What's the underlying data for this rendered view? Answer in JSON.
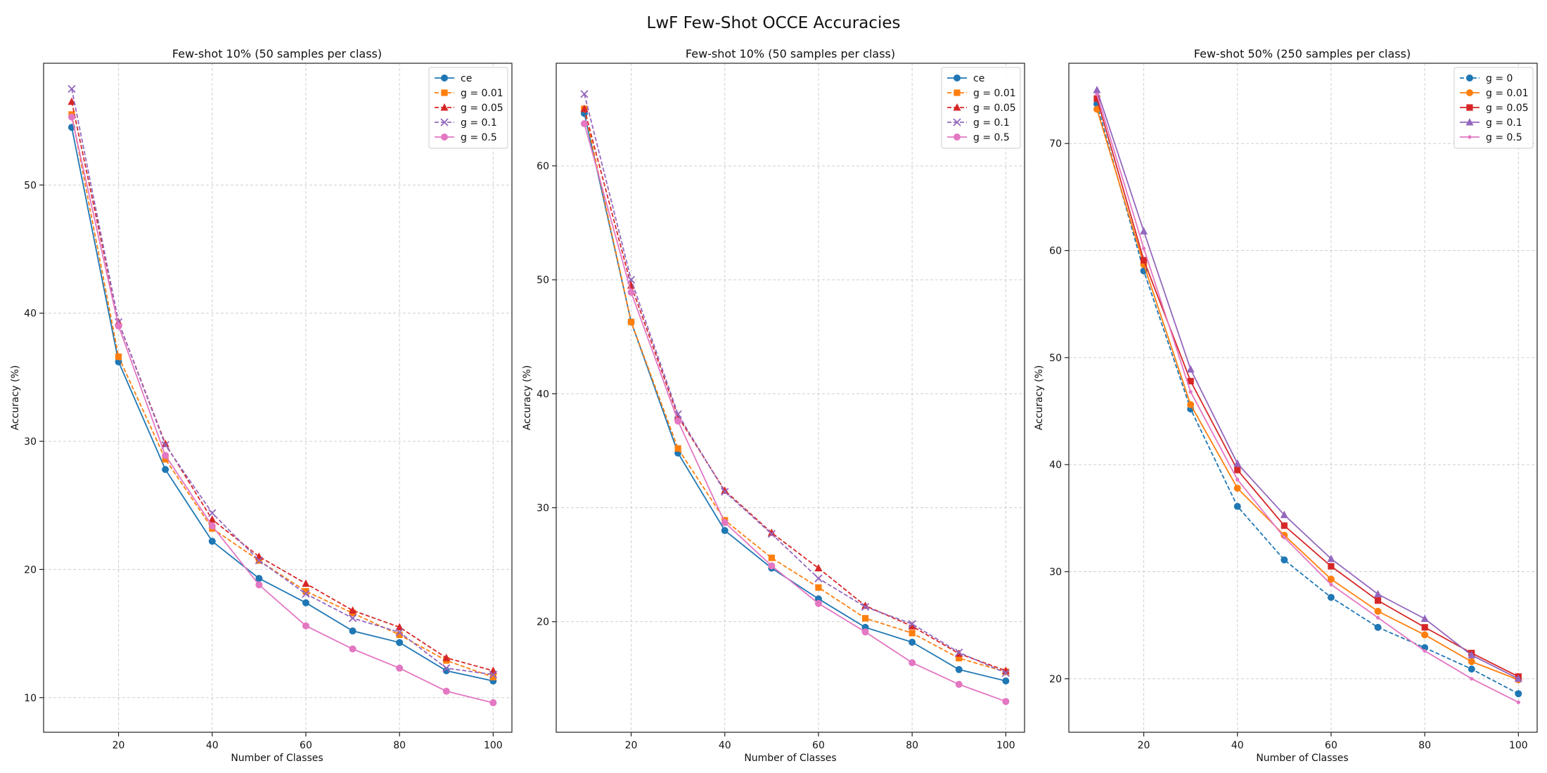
{
  "figure": {
    "title": "LwF Few-Shot OCCE Accuracies"
  },
  "chart_data": [
    {
      "type": "line",
      "title": "Few-shot 10% (50 samples per class)",
      "xlabel": "Number of Classes",
      "ylabel": "Accuracy (%)",
      "x": [
        10,
        20,
        30,
        40,
        50,
        60,
        70,
        80,
        90,
        100
      ],
      "xlim": [
        4,
        104
      ],
      "ylim": [
        7.3,
        59.5
      ],
      "xticks": [
        20,
        40,
        60,
        80,
        100
      ],
      "yticks": [
        10,
        20,
        30,
        40,
        50
      ],
      "legend_position": "top-right",
      "grid": true,
      "series": [
        {
          "name": "ce",
          "color": "#1f77b4",
          "dash": "solid",
          "marker": "circle",
          "values": [
            54.5,
            36.2,
            27.8,
            22.2,
            19.3,
            17.4,
            15.2,
            14.3,
            12.1,
            11.3
          ]
        },
        {
          "name": "g = 0.01",
          "color": "#ff7f0e",
          "dash": "dashed",
          "marker": "square",
          "values": [
            55.5,
            36.6,
            28.6,
            23.2,
            20.7,
            18.3,
            16.6,
            14.9,
            12.9,
            11.6
          ]
        },
        {
          "name": "g = 0.05",
          "color": "#d62728",
          "dash": "dashed",
          "marker": "triangle",
          "values": [
            56.5,
            39.3,
            29.8,
            23.9,
            21.0,
            18.9,
            16.8,
            15.5,
            13.1,
            12.1
          ]
        },
        {
          "name": "g = 0.1",
          "color": "#9467bd",
          "dash": "dashed",
          "marker": "x",
          "values": [
            57.5,
            39.3,
            29.7,
            24.4,
            20.7,
            18.1,
            16.2,
            15.1,
            12.3,
            11.8
          ]
        },
        {
          "name": "g = 0.5",
          "color": "#e377c2",
          "dash": "solid",
          "marker": "circle",
          "values": [
            55.3,
            39.0,
            28.9,
            23.4,
            18.8,
            15.6,
            13.8,
            12.3,
            10.5,
            9.6
          ]
        }
      ]
    },
    {
      "type": "line",
      "title": "Few-shot 10% (50 samples per class)",
      "xlabel": "Number of Classes",
      "ylabel": "Accuracy (%)",
      "x": [
        10,
        20,
        30,
        40,
        50,
        60,
        70,
        80,
        90,
        100
      ],
      "xlim": [
        4,
        104
      ],
      "ylim": [
        10.3,
        69.0
      ],
      "xticks": [
        20,
        40,
        60,
        80,
        100
      ],
      "yticks": [
        20,
        30,
        40,
        50,
        60
      ],
      "legend_position": "top-right",
      "grid": true,
      "series": [
        {
          "name": "ce",
          "color": "#1f77b4",
          "dash": "solid",
          "marker": "circle",
          "values": [
            64.6,
            46.3,
            34.8,
            28.0,
            24.7,
            22.0,
            19.5,
            18.2,
            15.8,
            14.8
          ]
        },
        {
          "name": "g = 0.01",
          "color": "#ff7f0e",
          "dash": "dashed",
          "marker": "square",
          "values": [
            65.0,
            46.3,
            35.2,
            28.9,
            25.6,
            23.0,
            20.3,
            19.0,
            16.8,
            15.6
          ]
        },
        {
          "name": "g = 0.05",
          "color": "#d62728",
          "dash": "dashed",
          "marker": "triangle",
          "values": [
            65.0,
            49.5,
            38.0,
            31.5,
            27.8,
            24.7,
            21.4,
            19.6,
            17.2,
            15.7
          ]
        },
        {
          "name": "g = 0.1",
          "color": "#9467bd",
          "dash": "dashed",
          "marker": "x",
          "values": [
            66.3,
            50.0,
            38.2,
            31.4,
            27.7,
            23.8,
            21.3,
            19.8,
            17.3,
            15.5
          ]
        },
        {
          "name": "g = 0.5",
          "color": "#e377c2",
          "dash": "solid",
          "marker": "circle",
          "values": [
            63.7,
            48.9,
            37.6,
            28.7,
            24.9,
            21.6,
            19.1,
            16.4,
            14.5,
            13.0
          ]
        }
      ]
    },
    {
      "type": "line",
      "title": "Few-shot 50% (250 samples per class)",
      "xlabel": "Number of Classes",
      "ylabel": "Accuracy (%)",
      "x": [
        10,
        20,
        30,
        40,
        50,
        60,
        70,
        80,
        90,
        100
      ],
      "xlim": [
        4,
        104
      ],
      "ylim": [
        15.0,
        77.5
      ],
      "xticks": [
        20,
        40,
        60,
        80,
        100
      ],
      "yticks": [
        20,
        30,
        40,
        50,
        60,
        70
      ],
      "legend_position": "top-right",
      "grid": true,
      "series": [
        {
          "name": "g = 0",
          "color": "#1f77b4",
          "dash": "dashed",
          "marker": "circle",
          "values": [
            73.7,
            58.1,
            45.2,
            36.1,
            31.1,
            27.6,
            24.8,
            22.9,
            20.9,
            18.6
          ]
        },
        {
          "name": "g = 0.01",
          "color": "#ff7f0e",
          "dash": "solid",
          "marker": "circle",
          "values": [
            73.2,
            58.7,
            45.6,
            37.8,
            33.4,
            29.3,
            26.3,
            24.1,
            21.6,
            19.9
          ]
        },
        {
          "name": "g = 0.05",
          "color": "#d62728",
          "dash": "solid",
          "marker": "square",
          "values": [
            74.2,
            59.1,
            47.8,
            39.5,
            34.3,
            30.5,
            27.3,
            24.8,
            22.4,
            20.2
          ]
        },
        {
          "name": "g = 0.1",
          "color": "#9467bd",
          "dash": "solid",
          "marker": "triangle",
          "values": [
            75.0,
            61.8,
            48.9,
            40.1,
            35.3,
            31.2,
            27.9,
            25.6,
            22.2,
            20.0
          ]
        },
        {
          "name": "g = 0.5",
          "color": "#e377c2",
          "dash": "solid",
          "marker": "dot",
          "values": [
            74.6,
            60.2,
            46.8,
            38.6,
            33.2,
            28.8,
            25.7,
            22.6,
            20.0,
            17.8
          ]
        }
      ]
    }
  ]
}
